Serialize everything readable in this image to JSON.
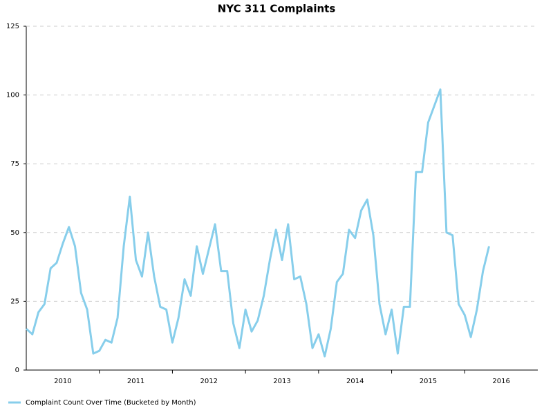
{
  "chart_data": {
    "type": "line",
    "title": "NYC 311 Complaints",
    "x": [
      "2010-01",
      "2010-02",
      "2010-03",
      "2010-04",
      "2010-05",
      "2010-06",
      "2010-07",
      "2010-08",
      "2010-09",
      "2010-10",
      "2010-11",
      "2010-12",
      "2011-01",
      "2011-02",
      "2011-03",
      "2011-04",
      "2011-05",
      "2011-06",
      "2011-07",
      "2011-08",
      "2011-09",
      "2011-10",
      "2011-11",
      "2011-12",
      "2012-01",
      "2012-02",
      "2012-03",
      "2012-04",
      "2012-05",
      "2012-06",
      "2012-07",
      "2012-08",
      "2012-09",
      "2012-10",
      "2012-11",
      "2012-12",
      "2013-01",
      "2013-02",
      "2013-03",
      "2013-04",
      "2013-05",
      "2013-06",
      "2013-07",
      "2013-08",
      "2013-09",
      "2013-10",
      "2013-11",
      "2013-12",
      "2014-01",
      "2014-02",
      "2014-03",
      "2014-04",
      "2014-05",
      "2014-06",
      "2014-07",
      "2014-08",
      "2014-09",
      "2014-10",
      "2014-11",
      "2014-12",
      "2015-01",
      "2015-02",
      "2015-03",
      "2015-04",
      "2015-05",
      "2015-06",
      "2015-07",
      "2015-08",
      "2015-09",
      "2015-10",
      "2015-11",
      "2015-12",
      "2016-01",
      "2016-02",
      "2016-03",
      "2016-04",
      "2016-05"
    ],
    "series": [
      {
        "name": "Complaint Count Over Time (Bucketed by Month)",
        "color": "#87ceeb",
        "values": [
          15,
          13,
          21,
          24,
          37,
          39,
          46,
          52,
          45,
          28,
          22,
          6,
          7,
          11,
          10,
          19,
          45,
          63,
          40,
          34,
          50,
          34,
          23,
          22,
          10,
          19,
          33,
          27,
          45,
          35,
          44,
          53,
          36,
          36,
          17,
          8,
          22,
          14,
          18,
          27,
          40,
          51,
          40,
          53,
          33,
          34,
          24,
          8,
          13,
          5,
          15,
          32,
          35,
          51,
          48,
          58,
          62,
          49,
          24,
          13,
          22,
          6,
          23,
          23,
          72,
          72,
          90,
          96,
          102,
          50,
          49,
          24,
          20,
          12,
          22,
          36,
          45
        ]
      }
    ],
    "xlim": [
      "2010-01",
      "2017-01"
    ],
    "xticks": [
      {
        "value": "2010-07",
        "label": "2010"
      },
      {
        "value": "2011-07",
        "label": "2011"
      },
      {
        "value": "2012-07",
        "label": "2012"
      },
      {
        "value": "2013-07",
        "label": "2013"
      },
      {
        "value": "2014-07",
        "label": "2014"
      },
      {
        "value": "2015-07",
        "label": "2015"
      },
      {
        "value": "2016-07",
        "label": "2016"
      }
    ],
    "ylim": [
      0,
      125
    ],
    "yticks": [
      0,
      25,
      50,
      75,
      100,
      125
    ],
    "grid": true
  }
}
